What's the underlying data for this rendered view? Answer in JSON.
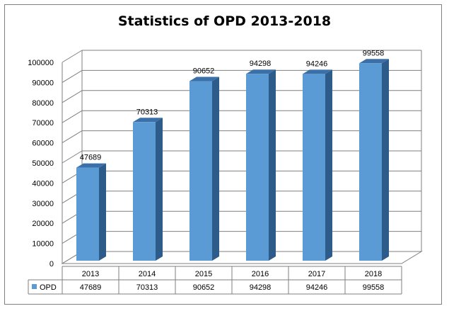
{
  "chart_data": {
    "type": "bar",
    "title": "Statistics of OPD 2013-2018",
    "categories": [
      "2013",
      "2014",
      "2015",
      "2016",
      "2017",
      "2018"
    ],
    "series": [
      {
        "name": "OPD",
        "values": [
          47689,
          70313,
          90652,
          94298,
          94246,
          99558
        ]
      }
    ],
    "ylim": [
      0,
      100000
    ],
    "yticks": [
      "0",
      "10000",
      "20000",
      "30000",
      "40000",
      "50000",
      "60000",
      "70000",
      "80000",
      "90000",
      "100000"
    ],
    "ytick_step": 10000,
    "grid": true,
    "legend": "data-table",
    "colors": {
      "bar_front": "#5b9bd5",
      "bar_side": "#2e5c8a",
      "bar_top": "#3a6fa8",
      "grid": "#7f7f7f"
    }
  }
}
